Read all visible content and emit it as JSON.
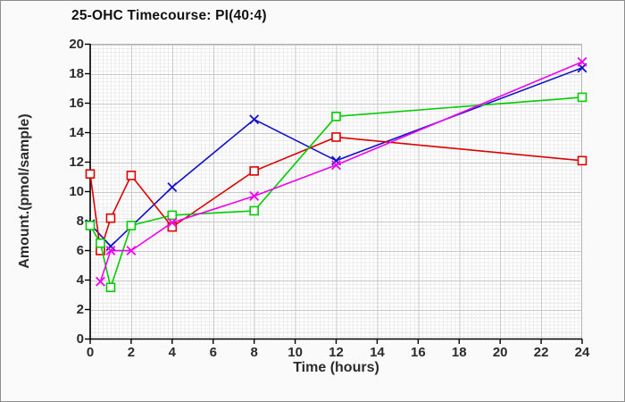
{
  "figure": {
    "background": "#fafafa",
    "border_color": "#8c8c8c",
    "plot_background": "#ffffff",
    "grid_minor_color": "#ececec",
    "grid_major_color": "#c9c9c9",
    "axis_color": "#000000",
    "text_color": "#2b2b2b"
  },
  "chart_data": {
    "type": "line",
    "title": "25-OHC Timecourse: PI(40:4)",
    "xlabel": "Time (hours)",
    "ylabel": "Amount.(pmol/sample)",
    "xlim": [
      0,
      24
    ],
    "ylim": [
      0,
      20
    ],
    "xticks": [
      0,
      2,
      4,
      6,
      8,
      10,
      12,
      14,
      16,
      18,
      20,
      22,
      24
    ],
    "yticks": [
      0,
      2,
      4,
      6,
      8,
      10,
      12,
      14,
      16,
      18,
      20
    ],
    "grid": "major and fine minor grid, on",
    "legend_position": "none",
    "series": [
      {
        "name": "blue",
        "color": "#1111cc",
        "marker": "x",
        "points": [
          [
            0,
            7.8
          ],
          [
            1,
            6.3
          ],
          [
            4,
            10.3
          ],
          [
            8,
            14.9
          ],
          [
            12,
            12.1
          ],
          [
            24,
            18.4
          ]
        ]
      },
      {
        "name": "red",
        "color": "#dd0000",
        "marker": "square",
        "points": [
          [
            0,
            11.2
          ],
          [
            0.5,
            6.0
          ],
          [
            1,
            8.2
          ],
          [
            2,
            11.1
          ],
          [
            4,
            7.6
          ],
          [
            8,
            11.4
          ],
          [
            12,
            13.7
          ],
          [
            24,
            12.1
          ]
        ]
      },
      {
        "name": "green",
        "color": "#00cc00",
        "marker": "square",
        "points": [
          [
            0,
            7.7
          ],
          [
            0.5,
            6.5
          ],
          [
            1,
            3.5
          ],
          [
            2,
            7.7
          ],
          [
            4,
            8.4
          ],
          [
            8,
            8.7
          ],
          [
            12,
            15.1
          ],
          [
            24,
            16.4
          ]
        ]
      },
      {
        "name": "magenta",
        "color": "#ee00ee",
        "marker": "x",
        "points": [
          [
            0.5,
            3.9
          ],
          [
            1,
            6.0
          ],
          [
            2,
            6.0
          ],
          [
            4,
            7.9
          ],
          [
            8,
            9.7
          ],
          [
            12,
            11.8
          ],
          [
            24,
            18.8
          ]
        ]
      }
    ]
  }
}
